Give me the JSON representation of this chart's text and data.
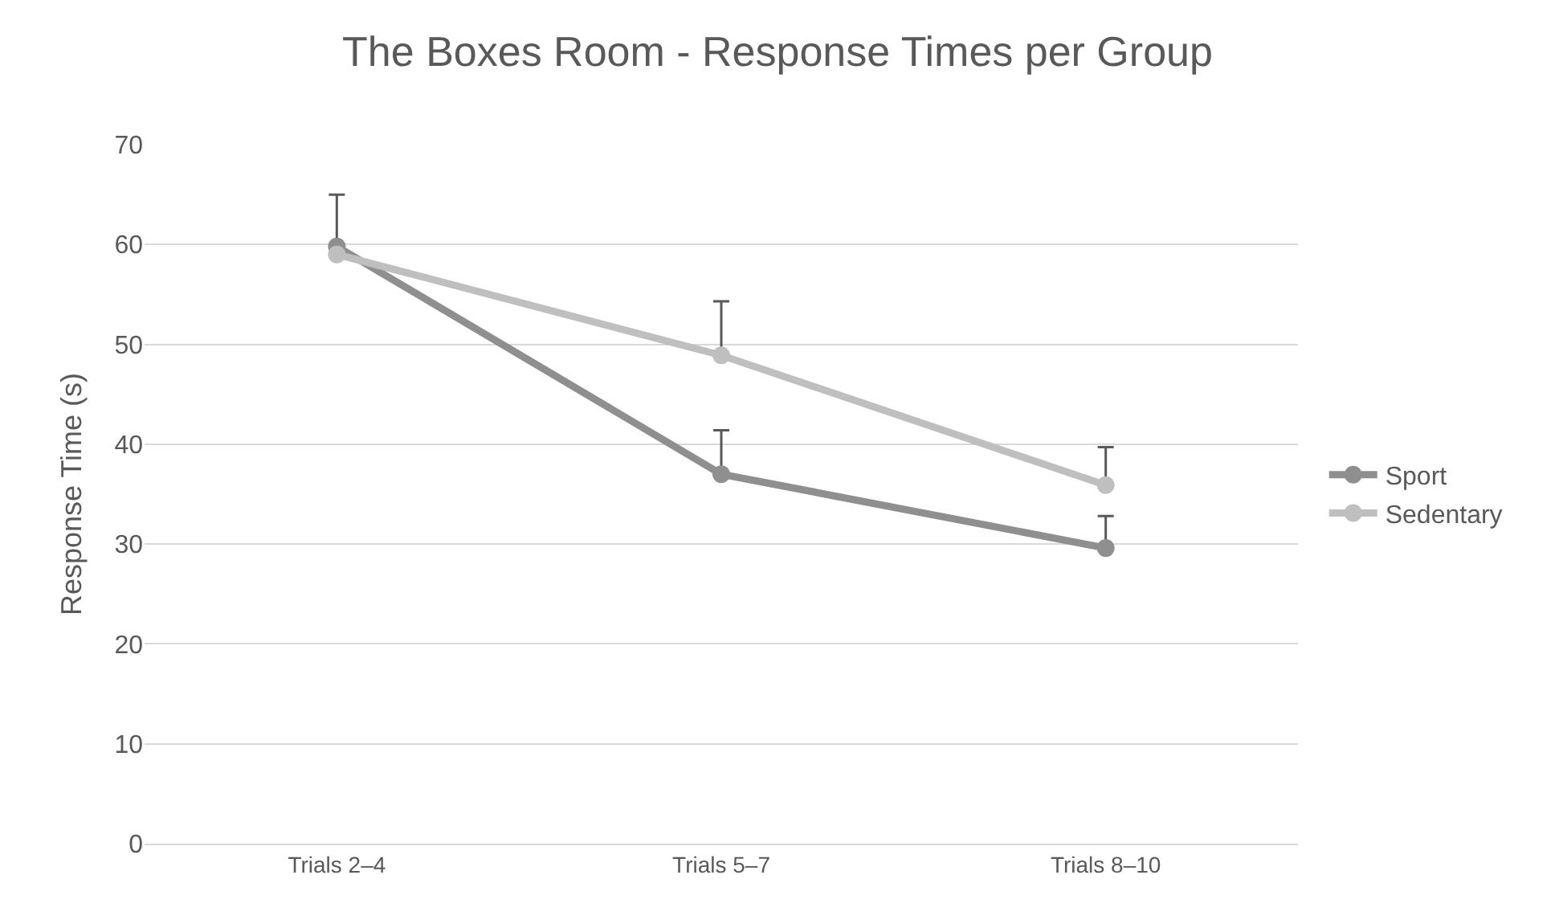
{
  "chart_data": {
    "type": "line",
    "title": "The Boxes Room - Response Times per Group",
    "ylabel": "Response Time (s)",
    "categories": [
      "Trials 2–4",
      "Trials 5–7",
      "Trials 8–10"
    ],
    "series": [
      {
        "name": "Sport",
        "color": "#8f8f8f",
        "values": [
          59.8,
          37.0,
          29.6
        ],
        "errors": [
          [
            59.8,
            65.0
          ],
          [
            37.0,
            41.4
          ],
          [
            29.6,
            32.8
          ]
        ]
      },
      {
        "name": "Sedentary",
        "color": "#bfbfbf",
        "values": [
          59.0,
          48.9,
          35.9
        ],
        "errors": [
          null,
          [
            48.9,
            54.3
          ],
          [
            35.9,
            39.7
          ]
        ]
      }
    ],
    "ylim": [
      0,
      70
    ],
    "yticks": [
      0,
      10,
      20,
      30,
      40,
      50,
      60,
      70
    ],
    "grid": "y",
    "legend": "right",
    "marker": "circle",
    "line_style": "solid"
  }
}
